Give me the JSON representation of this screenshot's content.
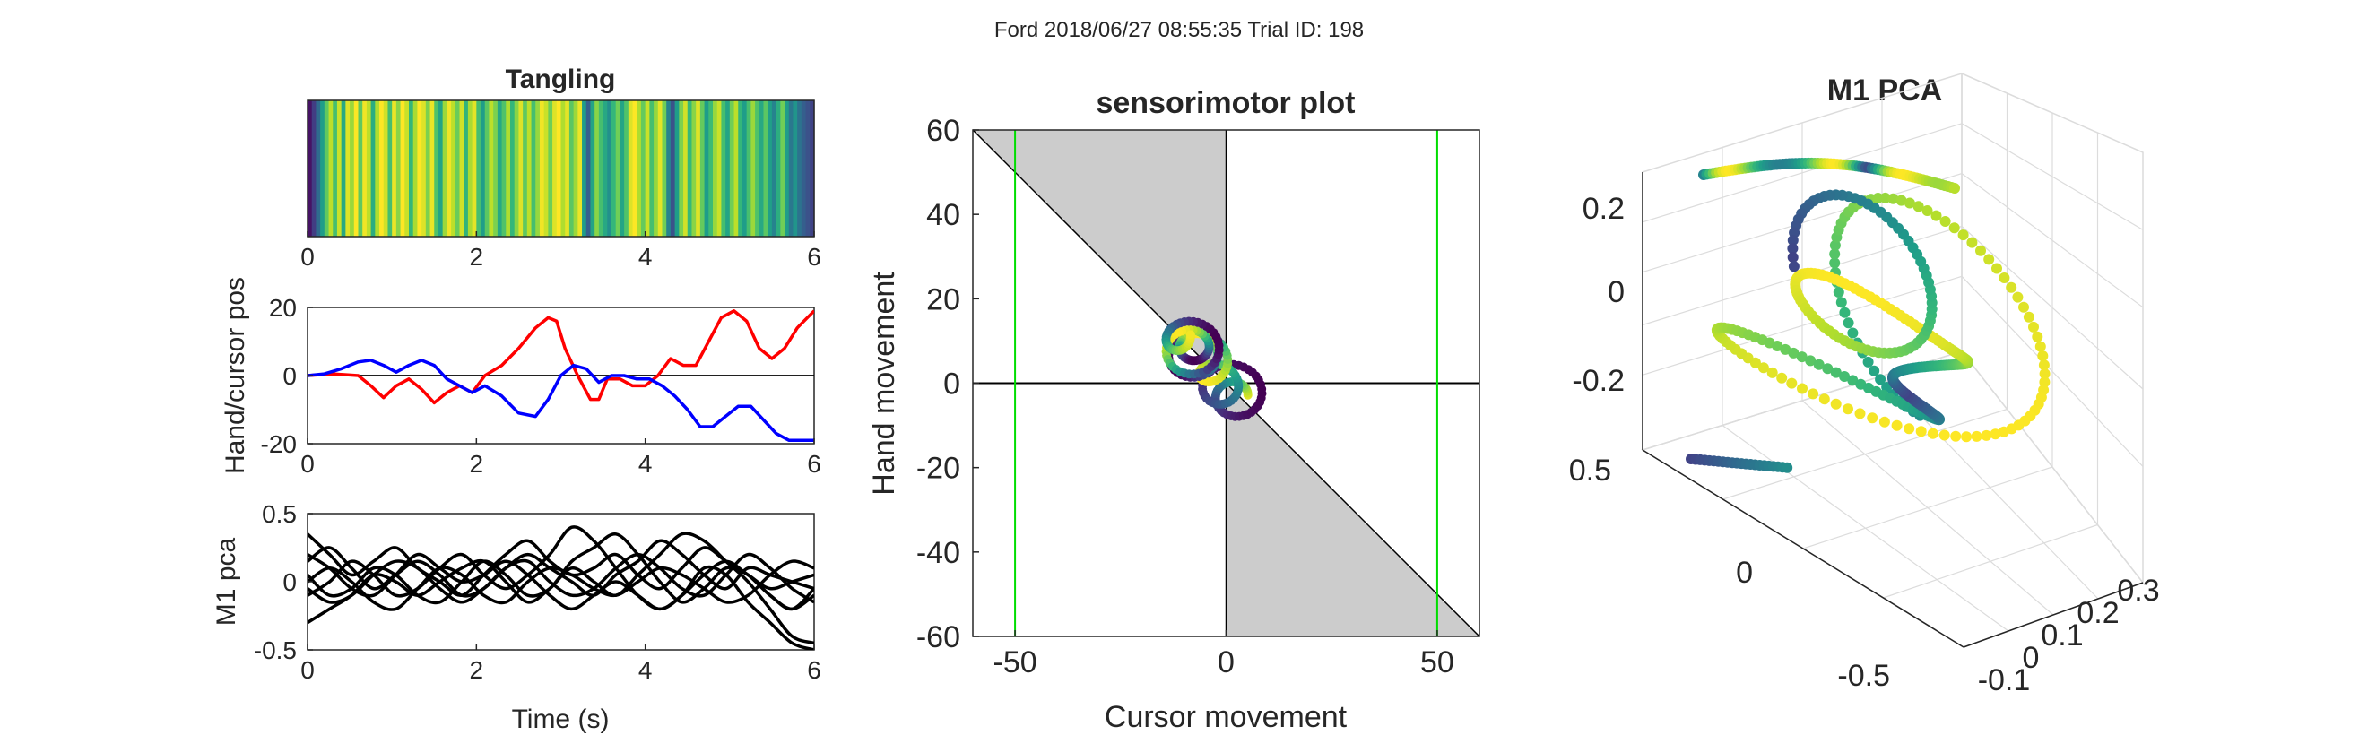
{
  "figure": {
    "suptitle": "Ford 2018/06/27 08:55:35 Trial ID: 198"
  },
  "chart_data": [
    {
      "id": "tangling",
      "type": "heatmap",
      "title": "Tangling",
      "xlim": [
        0,
        6
      ],
      "xticks": [
        "0",
        "2",
        "4",
        "6"
      ],
      "colormap": "viridis",
      "strip": [
        {
          "x": 0.0,
          "v": 0.05
        },
        {
          "x": 0.05,
          "v": 0.18
        },
        {
          "x": 0.1,
          "v": 0.35
        },
        {
          "x": 0.15,
          "v": 0.55
        },
        {
          "x": 0.2,
          "v": 0.75
        },
        {
          "x": 0.25,
          "v": 0.9
        },
        {
          "x": 0.3,
          "v": 0.7
        },
        {
          "x": 0.35,
          "v": 0.92
        },
        {
          "x": 0.4,
          "v": 0.6
        },
        {
          "x": 0.45,
          "v": 0.95
        },
        {
          "x": 0.5,
          "v": 0.85
        },
        {
          "x": 0.55,
          "v": 1.0
        },
        {
          "x": 0.6,
          "v": 0.75
        },
        {
          "x": 0.65,
          "v": 0.98
        },
        {
          "x": 0.7,
          "v": 0.9
        },
        {
          "x": 0.75,
          "v": 0.62
        },
        {
          "x": 0.8,
          "v": 0.88
        },
        {
          "x": 0.85,
          "v": 1.0
        },
        {
          "x": 0.9,
          "v": 0.93
        },
        {
          "x": 0.95,
          "v": 0.7
        },
        {
          "x": 1.0,
          "v": 0.97
        },
        {
          "x": 1.05,
          "v": 0.82
        },
        {
          "x": 1.1,
          "v": 1.0
        },
        {
          "x": 1.15,
          "v": 0.92
        },
        {
          "x": 1.2,
          "v": 0.66
        },
        {
          "x": 1.25,
          "v": 0.87
        },
        {
          "x": 1.3,
          "v": 1.0
        },
        {
          "x": 1.35,
          "v": 0.95
        },
        {
          "x": 1.4,
          "v": 0.8
        },
        {
          "x": 1.45,
          "v": 0.97
        },
        {
          "x": 1.5,
          "v": 0.72
        },
        {
          "x": 1.55,
          "v": 0.58
        },
        {
          "x": 1.6,
          "v": 0.85
        },
        {
          "x": 1.65,
          "v": 0.98
        },
        {
          "x": 1.7,
          "v": 0.9
        },
        {
          "x": 1.75,
          "v": 0.77
        },
        {
          "x": 1.8,
          "v": 0.93
        },
        {
          "x": 1.85,
          "v": 0.65
        },
        {
          "x": 1.9,
          "v": 0.87
        },
        {
          "x": 1.95,
          "v": 0.96
        },
        {
          "x": 2.0,
          "v": 0.7
        },
        {
          "x": 2.05,
          "v": 0.55
        },
        {
          "x": 2.1,
          "v": 0.74
        },
        {
          "x": 2.15,
          "v": 0.9
        },
        {
          "x": 2.2,
          "v": 0.8
        },
        {
          "x": 2.25,
          "v": 0.6
        },
        {
          "x": 2.3,
          "v": 0.72
        },
        {
          "x": 2.35,
          "v": 0.88
        },
        {
          "x": 2.4,
          "v": 0.66
        },
        {
          "x": 2.45,
          "v": 0.82
        },
        {
          "x": 2.5,
          "v": 0.95
        },
        {
          "x": 2.55,
          "v": 0.75
        },
        {
          "x": 2.6,
          "v": 0.9
        },
        {
          "x": 2.65,
          "v": 0.7
        },
        {
          "x": 2.7,
          "v": 0.84
        },
        {
          "x": 2.75,
          "v": 0.98
        },
        {
          "x": 2.8,
          "v": 0.92
        },
        {
          "x": 2.85,
          "v": 0.78
        },
        {
          "x": 2.9,
          "v": 0.95
        },
        {
          "x": 2.95,
          "v": 1.0
        },
        {
          "x": 3.0,
          "v": 0.88
        },
        {
          "x": 3.05,
          "v": 0.96
        },
        {
          "x": 3.1,
          "v": 0.74
        },
        {
          "x": 3.15,
          "v": 0.85
        },
        {
          "x": 3.2,
          "v": 0.97
        },
        {
          "x": 3.25,
          "v": 0.55
        },
        {
          "x": 3.3,
          "v": 0.3
        },
        {
          "x": 3.35,
          "v": 0.58
        },
        {
          "x": 3.4,
          "v": 0.82
        },
        {
          "x": 3.45,
          "v": 0.7
        },
        {
          "x": 3.5,
          "v": 0.6
        },
        {
          "x": 3.55,
          "v": 0.5
        },
        {
          "x": 3.6,
          "v": 0.66
        },
        {
          "x": 3.65,
          "v": 0.78
        },
        {
          "x": 3.7,
          "v": 0.58
        },
        {
          "x": 3.75,
          "v": 0.72
        },
        {
          "x": 3.8,
          "v": 0.95
        },
        {
          "x": 3.85,
          "v": 1.0
        },
        {
          "x": 3.9,
          "v": 0.88
        },
        {
          "x": 3.95,
          "v": 0.76
        },
        {
          "x": 4.0,
          "v": 0.92
        },
        {
          "x": 4.05,
          "v": 0.7
        },
        {
          "x": 4.1,
          "v": 0.84
        },
        {
          "x": 4.15,
          "v": 0.96
        },
        {
          "x": 4.2,
          "v": 0.78
        },
        {
          "x": 4.25,
          "v": 0.45
        },
        {
          "x": 4.3,
          "v": 0.25
        },
        {
          "x": 4.35,
          "v": 0.55
        },
        {
          "x": 4.4,
          "v": 0.8
        },
        {
          "x": 4.45,
          "v": 0.93
        },
        {
          "x": 4.5,
          "v": 0.67
        },
        {
          "x": 4.55,
          "v": 0.82
        },
        {
          "x": 4.6,
          "v": 0.95
        },
        {
          "x": 4.65,
          "v": 0.76
        },
        {
          "x": 4.7,
          "v": 0.55
        },
        {
          "x": 4.75,
          "v": 0.68
        },
        {
          "x": 4.8,
          "v": 0.84
        },
        {
          "x": 4.85,
          "v": 0.92
        },
        {
          "x": 4.9,
          "v": 0.7
        },
        {
          "x": 4.95,
          "v": 0.58
        },
        {
          "x": 5.0,
          "v": 0.78
        },
        {
          "x": 5.05,
          "v": 0.9
        },
        {
          "x": 5.1,
          "v": 0.66
        },
        {
          "x": 5.15,
          "v": 0.55
        },
        {
          "x": 5.2,
          "v": 0.7
        },
        {
          "x": 5.25,
          "v": 0.85
        },
        {
          "x": 5.3,
          "v": 0.72
        },
        {
          "x": 5.35,
          "v": 0.6
        },
        {
          "x": 5.4,
          "v": 0.74
        },
        {
          "x": 5.45,
          "v": 0.56
        },
        {
          "x": 5.5,
          "v": 0.45
        },
        {
          "x": 5.55,
          "v": 0.62
        },
        {
          "x": 5.6,
          "v": 0.78
        },
        {
          "x": 5.65,
          "v": 0.55
        },
        {
          "x": 5.7,
          "v": 0.4
        },
        {
          "x": 5.75,
          "v": 0.52
        },
        {
          "x": 5.8,
          "v": 0.38
        },
        {
          "x": 5.85,
          "v": 0.3
        },
        {
          "x": 5.9,
          "v": 0.25
        },
        {
          "x": 5.95,
          "v": 0.2
        }
      ]
    },
    {
      "id": "handcursor",
      "type": "line",
      "ylabel": "Hand/cursor pos",
      "xlim": [
        0,
        6
      ],
      "ylim": [
        -20,
        20
      ],
      "xticks": [
        "0",
        "2",
        "4",
        "6"
      ],
      "yticks": [
        "20",
        "0",
        "-20"
      ],
      "zero_line": true,
      "series": [
        {
          "color": "#ff0000",
          "x": [
            0,
            0.3,
            0.6,
            0.75,
            0.9,
            1.05,
            1.2,
            1.35,
            1.5,
            1.65,
            1.8,
            1.95,
            2.1,
            2.3,
            2.5,
            2.7,
            2.85,
            2.95,
            3.05,
            3.2,
            3.35,
            3.45,
            3.55,
            3.7,
            3.85,
            4.0,
            4.15,
            4.3,
            4.45,
            4.6,
            4.75,
            4.9,
            5.05,
            5.2,
            5.35,
            5.5,
            5.65,
            5.8,
            6.0
          ],
          "y": [
            0,
            0.5,
            0,
            -3,
            -6.5,
            -3,
            -1,
            -4,
            -8,
            -5,
            -3,
            -5,
            0,
            3,
            8,
            14,
            17,
            16,
            8,
            0,
            -7,
            -7,
            -1,
            -1,
            -3,
            -3,
            0,
            5,
            3,
            3,
            10,
            17,
            19,
            16,
            8,
            5,
            8,
            14,
            19
          ]
        },
        {
          "color": "#0000ff",
          "x": [
            0,
            0.2,
            0.4,
            0.6,
            0.75,
            0.9,
            1.05,
            1.2,
            1.35,
            1.5,
            1.65,
            1.8,
            1.95,
            2.1,
            2.3,
            2.5,
            2.7,
            2.85,
            3.0,
            3.15,
            3.3,
            3.45,
            3.6,
            3.75,
            3.9,
            4.05,
            4.2,
            4.35,
            4.5,
            4.65,
            4.8,
            4.95,
            5.1,
            5.25,
            5.4,
            5.55,
            5.7,
            5.85,
            6.0
          ],
          "y": [
            0,
            0.5,
            2,
            4,
            4.5,
            3,
            1,
            3,
            4.5,
            3,
            -1,
            -3,
            -5,
            -3,
            -6,
            -11,
            -12,
            -7,
            0,
            3,
            2,
            -2,
            0,
            0,
            -1,
            -1,
            -3,
            -6,
            -10,
            -15,
            -15,
            -12,
            -9,
            -9,
            -13,
            -17,
            -19,
            -19,
            -19
          ]
        }
      ]
    },
    {
      "id": "m1pca",
      "type": "line",
      "xlabel": "Time (s)",
      "ylabel": "M1 pca",
      "xlim": [
        0,
        6
      ],
      "ylim": [
        -0.5,
        0.5
      ],
      "xticks": [
        "0",
        "2",
        "4",
        "6"
      ],
      "yticks": [
        "0.5",
        "0",
        "-0.5"
      ],
      "series_color": "#000000",
      "series": [
        {
          "y": [
            0.35,
            0.2,
            0.05,
            0.15,
            0.25,
            0.1,
            0,
            -0.1,
            0.05,
            0.2,
            0.3,
            0.15,
            0.05,
            0.1,
            0.2,
            0.05,
            -0.05,
            0.1,
            0.25,
            0.15,
            0.05,
            -0.1,
            -0.2,
            -0.05
          ]
        },
        {
          "y": [
            0.15,
            0.25,
            0.1,
            -0.05,
            0.05,
            0.15,
            0.05,
            -0.1,
            -0.05,
            0.1,
            0.2,
            0.1,
            0,
            -0.1,
            0.05,
            0.15,
            0.3,
            0.2,
            0.05,
            -0.05,
            0.1,
            0.05,
            0,
            -0.05
          ]
        },
        {
          "y": [
            0.05,
            -0.1,
            -0.05,
            0.1,
            0.05,
            -0.1,
            -0.15,
            0,
            0.15,
            0.05,
            -0.1,
            -0.05,
            0.15,
            0.25,
            0.35,
            0.2,
            0,
            -0.15,
            -0.05,
            0.1,
            0.05,
            -0.1,
            -0.2,
            -0.1
          ]
        },
        {
          "y": [
            -0.1,
            0,
            0.15,
            0.05,
            -0.1,
            -0.05,
            0.1,
            0.2,
            0.05,
            -0.05,
            0.05,
            0.2,
            0.4,
            0.3,
            0.1,
            -0.1,
            -0.2,
            -0.1,
            0.05,
            0.15,
            0.05,
            -0.05,
            0,
            0.05
          ]
        },
        {
          "y": [
            0,
            0.1,
            0,
            -0.15,
            -0.2,
            -0.05,
            0.1,
            0.05,
            -0.1,
            -0.15,
            0,
            0.1,
            0.05,
            -0.05,
            -0.1,
            0,
            0.1,
            0.05,
            -0.05,
            -0.15,
            -0.1,
            0.05,
            0.15,
            0.1
          ]
        },
        {
          "y": [
            -0.05,
            -0.15,
            -0.1,
            0.05,
            0.15,
            0.1,
            -0.05,
            -0.15,
            -0.05,
            0.1,
            0.15,
            0,
            -0.1,
            -0.05,
            0.1,
            0.2,
            0.1,
            -0.05,
            -0.1,
            0.05,
            0.2,
            0.1,
            -0.05,
            -0.15
          ]
        },
        {
          "y": [
            0.2,
            0.1,
            -0.05,
            -0.1,
            0.05,
            0.2,
            0.1,
            0,
            0.05,
            0.15,
            0.05,
            -0.1,
            -0.2,
            -0.1,
            0,
            -0.1,
            -0.2,
            -0.1,
            0.1,
            0.05,
            -0.15,
            -0.3,
            -0.45,
            -0.5
          ]
        },
        {
          "y": [
            -0.3,
            -0.2,
            -0.1,
            0.05,
            0,
            -0.1,
            0,
            0.1,
            0.15,
            0,
            -0.15,
            -0.05,
            0.1,
            0,
            -0.1,
            0.05,
            0.2,
            0.35,
            0.3,
            0.15,
            0,
            -0.2,
            -0.4,
            -0.45
          ]
        }
      ]
    },
    {
      "id": "sensorimotor",
      "type": "line",
      "title": "sensorimotor plot",
      "xlabel": "Cursor movement",
      "ylabel": "Hand movement",
      "xlim": [
        -60,
        60
      ],
      "ylim": [
        -60,
        60
      ],
      "xticks": [
        "-50",
        "0",
        "50"
      ],
      "yticks": [
        "60",
        "40",
        "20",
        "0",
        "-20",
        "-40",
        "-60"
      ],
      "green_vlines": [
        -50,
        50
      ],
      "shaded_regions": [
        "x<0 & y>-x",
        "x>0 & y<-x"
      ],
      "colormap": "viridis",
      "trajectory_center": [
        -5,
        5
      ],
      "trajectory_extent": {
        "x": [
          -20,
          10
        ],
        "y": [
          -8,
          20
        ]
      }
    },
    {
      "id": "m1pca3d",
      "type": "scatter",
      "title": "M1 PCA",
      "zticks": [
        "0.2",
        "0",
        "-0.2"
      ],
      "left_axis_ticks": [
        "0.5",
        "0",
        "-0.5"
      ],
      "right_axis_ticks": [
        "-0.1",
        "0",
        "0.1",
        "0.2",
        "0.3"
      ],
      "colormap": "viridis",
      "grid": true
    }
  ]
}
